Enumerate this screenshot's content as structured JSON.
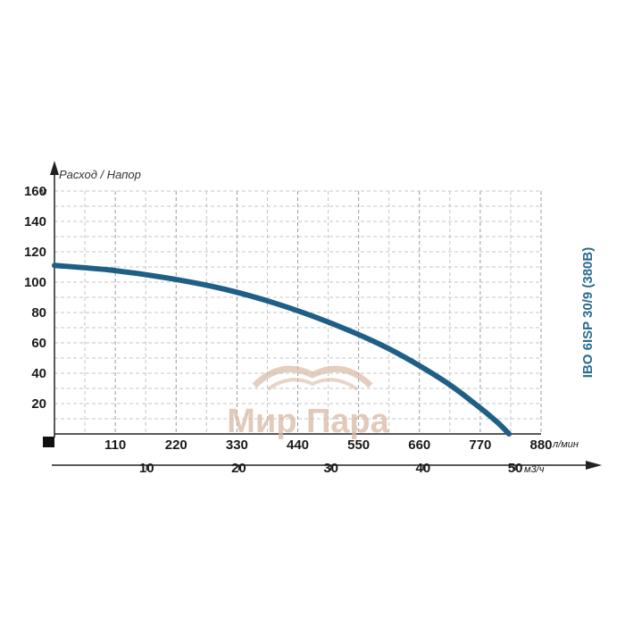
{
  "chart_data": {
    "type": "line",
    "title": "Расход / Напор",
    "model_label": "IBO 6ISP 30/9 (380В)",
    "watermark": "Мир Пара",
    "y_axis": {
      "unit": "м",
      "ylim": [
        0,
        160
      ],
      "ticks": [
        20,
        40,
        60,
        80,
        100,
        120,
        140,
        160
      ]
    },
    "x_axis": {
      "unit": "л/мин",
      "xlim": [
        0,
        880
      ],
      "ticks": [
        110,
        220,
        330,
        440,
        550,
        660,
        770,
        880
      ]
    },
    "x_axis2": {
      "unit": "м3/ч",
      "ticks": [
        10,
        20,
        30,
        40,
        50
      ]
    },
    "grid": true,
    "series": [
      {
        "color": "#1f5f86",
        "x": [
          0,
          100,
          200,
          300,
          400,
          500,
          600,
          700,
          760,
          800,
          822
        ],
        "y": [
          111,
          108,
          103,
          96,
          86,
          73,
          57,
          36,
          20,
          8,
          0
        ]
      }
    ]
  }
}
